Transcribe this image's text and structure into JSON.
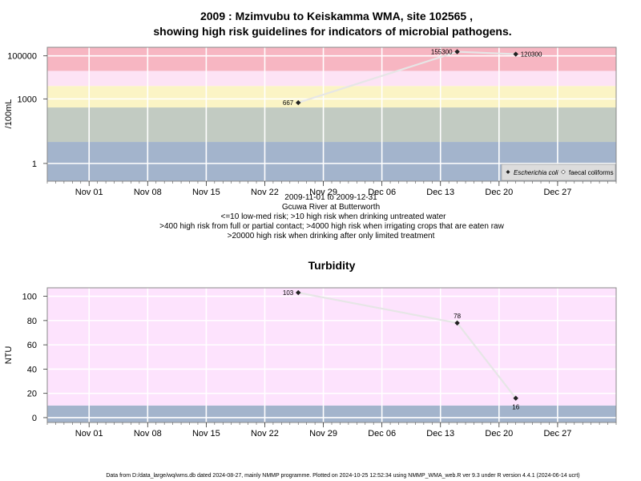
{
  "chart_data": [
    {
      "type": "line",
      "title_line1": "2009 : Mzimvubu to Keiskamma WMA, site 102565 ,",
      "title_line2": "showing high risk guidelines for indicators of microbial pathogens.",
      "ylabel": "/100mL",
      "yscale": "log",
      "ylim": [
        0.15,
        250000
      ],
      "xlim": [
        "2009-10-27",
        "2010-01-03"
      ],
      "x_ticks": [
        "Nov 01",
        "Nov 08",
        "Nov 15",
        "Nov 22",
        "Nov 29",
        "Dec 06",
        "Dec 13",
        "Dec 20",
        "Dec 27"
      ],
      "x_tick_dates": [
        "2009-11-01",
        "2009-11-08",
        "2009-11-15",
        "2009-11-22",
        "2009-11-29",
        "2009-12-06",
        "2009-12-13",
        "2009-12-20",
        "2009-12-27"
      ],
      "y_ticks": [
        "1",
        "1000",
        "100000"
      ],
      "y_tick_values": [
        1,
        1000,
        100000
      ],
      "bands": [
        {
          "from": 0.15,
          "to": 10,
          "color": "#a3b4cc"
        },
        {
          "from": 10,
          "to": 400,
          "color": "#c2cbc2"
        },
        {
          "from": 400,
          "to": 4000,
          "color": "#fbf4c5"
        },
        {
          "from": 4000,
          "to": 20000,
          "color": "#fde3f5"
        },
        {
          "from": 20000,
          "to": 250000,
          "color": "#f7b6c2"
        }
      ],
      "series": [
        {
          "name": "Escherichia coli",
          "points": [
            {
              "date": "2009-11-26",
              "value": 667,
              "label": "667",
              "label_side": "left"
            },
            {
              "date": "2009-12-15",
              "value": 155300,
              "label": "155300",
              "label_side": "left"
            },
            {
              "date": "2009-12-22",
              "value": 120300,
              "label": "120300",
              "label_side": "right"
            }
          ]
        }
      ],
      "legend_position": "bottom-right",
      "legend": [
        {
          "symbol": "filled-diamond",
          "label": "Escherichia coli"
        },
        {
          "symbol": "open-diamond",
          "label": "faecal coliforms"
        }
      ],
      "notes": [
        "2009-11-01 to 2009-12-31",
        "Gcuwa River at Butterworth",
        "<=10 low-med risk; >10 high risk when drinking untreated water",
        ">400 high risk from full or partial contact; >4000 high risk when irrigating crops that are eaten raw",
        ">20000 high risk when drinking after only limited treatment"
      ]
    },
    {
      "type": "line",
      "title": "Turbidity",
      "ylabel": "NTU",
      "ylim": [
        -4,
        107
      ],
      "xlim": [
        "2009-10-27",
        "2010-01-03"
      ],
      "x_ticks": [
        "Nov 01",
        "Nov 08",
        "Nov 15",
        "Nov 22",
        "Nov 29",
        "Dec 06",
        "Dec 13",
        "Dec 20",
        "Dec 27"
      ],
      "x_tick_dates": [
        "2009-11-01",
        "2009-11-08",
        "2009-11-15",
        "2009-11-22",
        "2009-11-29",
        "2009-12-06",
        "2009-12-13",
        "2009-12-20",
        "2009-12-27"
      ],
      "y_ticks": [
        "0",
        "20",
        "40",
        "60",
        "80",
        "100"
      ],
      "y_tick_values": [
        0,
        20,
        40,
        60,
        80,
        100
      ],
      "bands": [
        {
          "from": -4,
          "to": 10,
          "color": "#a3b4cc"
        },
        {
          "from": 10,
          "to": 107,
          "color": "#fde3fd"
        }
      ],
      "series": [
        {
          "name": "Turbidity",
          "points": [
            {
              "date": "2009-11-26",
              "value": 103,
              "label": "103",
              "label_side": "left"
            },
            {
              "date": "2009-12-15",
              "value": 78,
              "label": "78",
              "label_side": "above"
            },
            {
              "date": "2009-12-22",
              "value": 16,
              "label": "16",
              "label_side": "below"
            }
          ]
        }
      ]
    }
  ],
  "footer": "Data from D:/data_large/wq/wms.db dated 2024-08-27, mainly NMMP programme. Plotted on 2024-10-25 12:52:34 using NMMP_WMA_web.R ver 9.3 under R version 4.4.1 (2024-06-14 ucrt)"
}
